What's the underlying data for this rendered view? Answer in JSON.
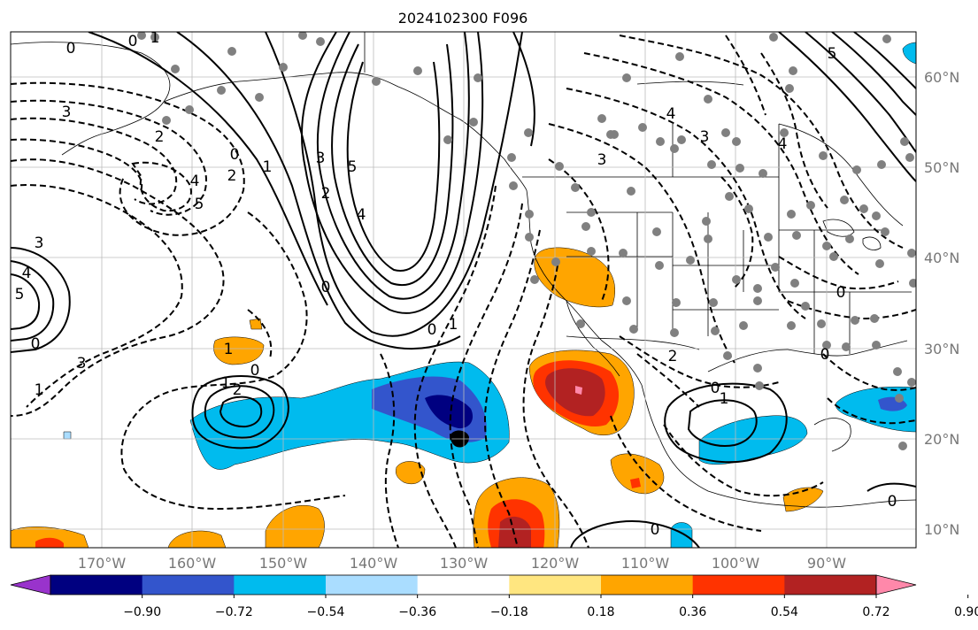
{
  "title": "2024102300 F096",
  "latitude_labels": [
    "60°N",
    "50°N",
    "40°N",
    "30°N",
    "20°N",
    "10°N"
  ],
  "longitude_labels": [
    "170°W",
    "160°W",
    "150°W",
    "140°W",
    "130°W",
    "120°W",
    "110°W",
    "100°W",
    "90°W"
  ],
  "colorbar": {
    "ticks": [
      "−0.90",
      "−0.72",
      "−0.54",
      "−0.36",
      "−0.18",
      "0.18",
      "0.36",
      "0.54",
      "0.72",
      "0.90"
    ],
    "colors": [
      "#9933cc",
      "#000080",
      "#3355cc",
      "#00bbee",
      "#aaddff",
      "#ffffff",
      "#ffe680",
      "#ffa500",
      "#ff3300",
      "#b22222",
      "#ff88aa"
    ]
  },
  "contour_labels": [
    "0",
    "0",
    "1",
    "3",
    "2",
    "4",
    "5",
    "0",
    "1",
    "2",
    "3",
    "5",
    "4",
    "0",
    "0",
    "1",
    "2",
    "3",
    "4",
    "5",
    "0",
    "1",
    "1",
    "2",
    "3",
    "0",
    "1",
    "2",
    "0",
    "1",
    "0",
    "0",
    "3",
    "4",
    "5",
    "3",
    "4",
    "0",
    "0"
  ],
  "colors": {
    "land_outline": "#000000",
    "grid": "#bbbbbb",
    "station_dots": "#808080"
  }
}
